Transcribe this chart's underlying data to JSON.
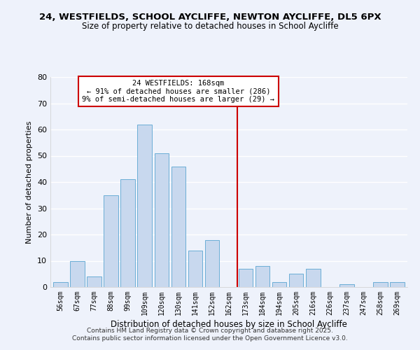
{
  "title1": "24, WESTFIELDS, SCHOOL AYCLIFFE, NEWTON AYCLIFFE, DL5 6PX",
  "title2": "Size of property relative to detached houses in School Aycliffe",
  "xlabel": "Distribution of detached houses by size in School Aycliffe",
  "ylabel": "Number of detached properties",
  "bar_labels": [
    "56sqm",
    "67sqm",
    "77sqm",
    "88sqm",
    "99sqm",
    "109sqm",
    "120sqm",
    "130sqm",
    "141sqm",
    "152sqm",
    "162sqm",
    "173sqm",
    "184sqm",
    "194sqm",
    "205sqm",
    "216sqm",
    "226sqm",
    "237sqm",
    "247sqm",
    "258sqm",
    "269sqm"
  ],
  "bar_values": [
    2,
    10,
    4,
    35,
    41,
    62,
    51,
    46,
    14,
    18,
    0,
    7,
    8,
    2,
    5,
    7,
    0,
    1,
    0,
    2,
    2
  ],
  "bar_color": "#c8d8ee",
  "bar_edge_color": "#6baed6",
  "vline_x": 10.5,
  "vline_color": "#cc0000",
  "annotation_title": "24 WESTFIELDS: 168sqm",
  "annotation_line1": "← 91% of detached houses are smaller (286)",
  "annotation_line2": "9% of semi-detached houses are larger (29) →",
  "ylim": [
    0,
    80
  ],
  "yticks": [
    0,
    10,
    20,
    30,
    40,
    50,
    60,
    70,
    80
  ],
  "bg_color": "#eef2fb",
  "grid_color": "#ffffff",
  "footnote1": "Contains HM Land Registry data © Crown copyright and database right 2025.",
  "footnote2": "Contains public sector information licensed under the Open Government Licence v3.0."
}
